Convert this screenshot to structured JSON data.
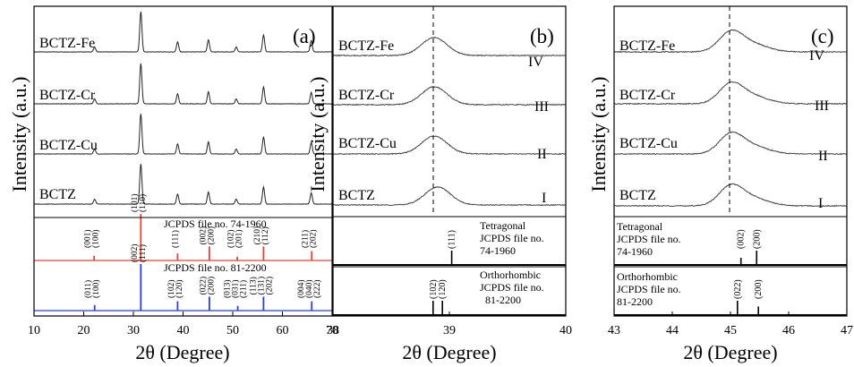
{
  "figure": {
    "ylabel": "Intensity (a.u.)",
    "xlabel": "2θ (Degree)"
  },
  "panels": [
    {
      "id": "a",
      "label": "(a)",
      "x_ticks": [
        10,
        20,
        30,
        40,
        50,
        60,
        70
      ],
      "samples": [
        "BCTZ-Fe",
        "BCTZ-Cr",
        "BCTZ-Cu",
        "BCTZ"
      ],
      "ref1_title": "JCPDS file no. 74-1960",
      "ref2_title": "JCPDS file no. 81-2200"
    },
    {
      "id": "b",
      "label": "(b)",
      "x_ticks": [
        38,
        39,
        40
      ],
      "samples": [
        "BCTZ-Fe",
        "BCTZ-Cr",
        "BCTZ-Cu",
        "BCTZ"
      ],
      "roman": [
        "IV",
        "III",
        "II",
        "I"
      ],
      "ref1_lines": [
        "Tetragonal",
        "JCPDS file no.",
        "74-1960"
      ],
      "ref2_lines": [
        "Orthorhombic",
        "JCPDS file no.",
        "81-2200"
      ]
    },
    {
      "id": "c",
      "label": "(c)",
      "x_ticks": [
        43,
        44,
        45,
        46,
        47
      ],
      "samples": [
        "BCTZ-Fe",
        "BCTZ-Cr",
        "BCTZ-Cu",
        "BCTZ"
      ],
      "roman": [
        "IV",
        "III",
        "II",
        "I"
      ],
      "ref1_lines": [
        "Tetragonal",
        "JCPDS file no.",
        "74-1960"
      ],
      "ref2_lines": [
        "Orthorhombic",
        "JCPDS file no.",
        "81-2200"
      ]
    }
  ],
  "chart_data": [
    {
      "type": "line",
      "panel": "a",
      "xlabel": "2θ (Degree)",
      "ylabel": "Intensity (a.u.)",
      "xlim": [
        10,
        70
      ],
      "series": [
        {
          "name": "BCTZ-Fe",
          "peaks_x": [
            22.2,
            31.5,
            38.9,
            45.1,
            50.7,
            56.2,
            65.8
          ],
          "peaks_rel": [
            0.12,
            1.0,
            0.25,
            0.3,
            0.12,
            0.42,
            0.28
          ]
        },
        {
          "name": "BCTZ-Cr",
          "peaks_x": [
            22.2,
            31.5,
            38.9,
            45.1,
            50.7,
            56.2,
            65.8
          ],
          "peaks_rel": [
            0.12,
            1.0,
            0.25,
            0.3,
            0.12,
            0.42,
            0.28
          ]
        },
        {
          "name": "BCTZ-Cu",
          "peaks_x": [
            22.2,
            31.5,
            38.9,
            45.1,
            50.7,
            56.2,
            65.8
          ],
          "peaks_rel": [
            0.12,
            1.0,
            0.25,
            0.3,
            0.12,
            0.42,
            0.28
          ]
        },
        {
          "name": "BCTZ",
          "peaks_x": [
            22.2,
            31.5,
            38.9,
            45.1,
            50.7,
            56.2,
            65.8
          ],
          "peaks_rel": [
            0.12,
            1.0,
            0.25,
            0.3,
            0.12,
            0.42,
            0.28
          ]
        }
      ],
      "references": [
        {
          "name": "JCPDS file no. 74-1960",
          "color": "#e2443a",
          "lines": [
            {
              "x": 22.1,
              "h": 0.1,
              "hkl": "(001) (100)"
            },
            {
              "x": 31.5,
              "h": 1.0,
              "hkl": "(101) (110)"
            },
            {
              "x": 38.9,
              "h": 0.15,
              "hkl": "(111)"
            },
            {
              "x": 45.3,
              "h": 0.3,
              "hkl": "(002) (200)"
            },
            {
              "x": 50.9,
              "h": 0.08,
              "hkl": "(102) (201)"
            },
            {
              "x": 56.2,
              "h": 0.3,
              "hkl": "(210) (112)"
            },
            {
              "x": 65.9,
              "h": 0.2,
              "hkl": "(211) (202)"
            }
          ]
        },
        {
          "name": "JCPDS file no. 81-2200",
          "color": "#2f3fd0",
          "lines": [
            {
              "x": 22.2,
              "h": 0.12,
              "hkl": "(011) (100)"
            },
            {
              "x": 31.5,
              "h": 1.0,
              "hkl": "(002) (111)"
            },
            {
              "x": 38.9,
              "h": 0.2,
              "hkl": "(102) (120)"
            },
            {
              "x": 45.3,
              "h": 0.3,
              "hkl": "(022) (200)"
            },
            {
              "x": 51.0,
              "h": 0.1,
              "hkl": "(013) (031) (211)"
            },
            {
              "x": 56.2,
              "h": 0.3,
              "hkl": "(113) (131) (202)"
            },
            {
              "x": 65.9,
              "h": 0.2,
              "hkl": "(004) (040) (222)"
            }
          ]
        }
      ]
    },
    {
      "type": "line",
      "panel": "b",
      "xlabel": "2θ (Degree)",
      "ylabel": "Intensity (a.u.)",
      "xlim": [
        38,
        40
      ],
      "dashed_line_x": 38.9,
      "series": [
        {
          "name": "BCTZ-Fe",
          "peak_x": 38.87,
          "roman": "IV"
        },
        {
          "name": "BCTZ-Cr",
          "peak_x": 38.87,
          "roman": "III"
        },
        {
          "name": "BCTZ-Cu",
          "peak_x": 38.87,
          "roman": "II"
        },
        {
          "name": "BCTZ",
          "peak_x": 38.9,
          "roman": "I"
        }
      ],
      "references": [
        {
          "name": "Tetragonal JCPDS file no. 74-1960",
          "lines": [
            {
              "x": 39.02,
              "h": 1.0,
              "hkl": "(111)"
            }
          ]
        },
        {
          "name": "Orthorhombic JCPDS file no. 81-2200",
          "lines": [
            {
              "x": 38.86,
              "h": 1.0,
              "hkl": "(102)"
            },
            {
              "x": 38.94,
              "h": 1.0,
              "hkl": "(120)"
            }
          ]
        }
      ]
    },
    {
      "type": "line",
      "panel": "c",
      "xlabel": "2θ (Degree)",
      "ylabel": "Intensity (a.u.)",
      "xlim": [
        43,
        47
      ],
      "dashed_line_x": 45.0,
      "series": [
        {
          "name": "BCTZ-Fe",
          "peak_x": 45.0,
          "roman": "IV"
        },
        {
          "name": "BCTZ-Cr",
          "peak_x": 45.0,
          "roman": "III"
        },
        {
          "name": "BCTZ-Cu",
          "peak_x": 45.0,
          "roman": "II"
        },
        {
          "name": "BCTZ",
          "peak_x": 45.0,
          "roman": "I"
        }
      ],
      "references": [
        {
          "name": "Tetragonal JCPDS file no. 74-1960",
          "lines": [
            {
              "x": 45.18,
              "h": 0.5,
              "hkl": "(002)"
            },
            {
              "x": 45.45,
              "h": 1.0,
              "hkl": "(200)"
            }
          ]
        },
        {
          "name": "Orthorhombic JCPDS file no. 81-2200",
          "lines": [
            {
              "x": 45.12,
              "h": 1.0,
              "hkl": "(022)"
            },
            {
              "x": 45.48,
              "h": 0.6,
              "hkl": "(200)"
            }
          ]
        }
      ]
    }
  ]
}
